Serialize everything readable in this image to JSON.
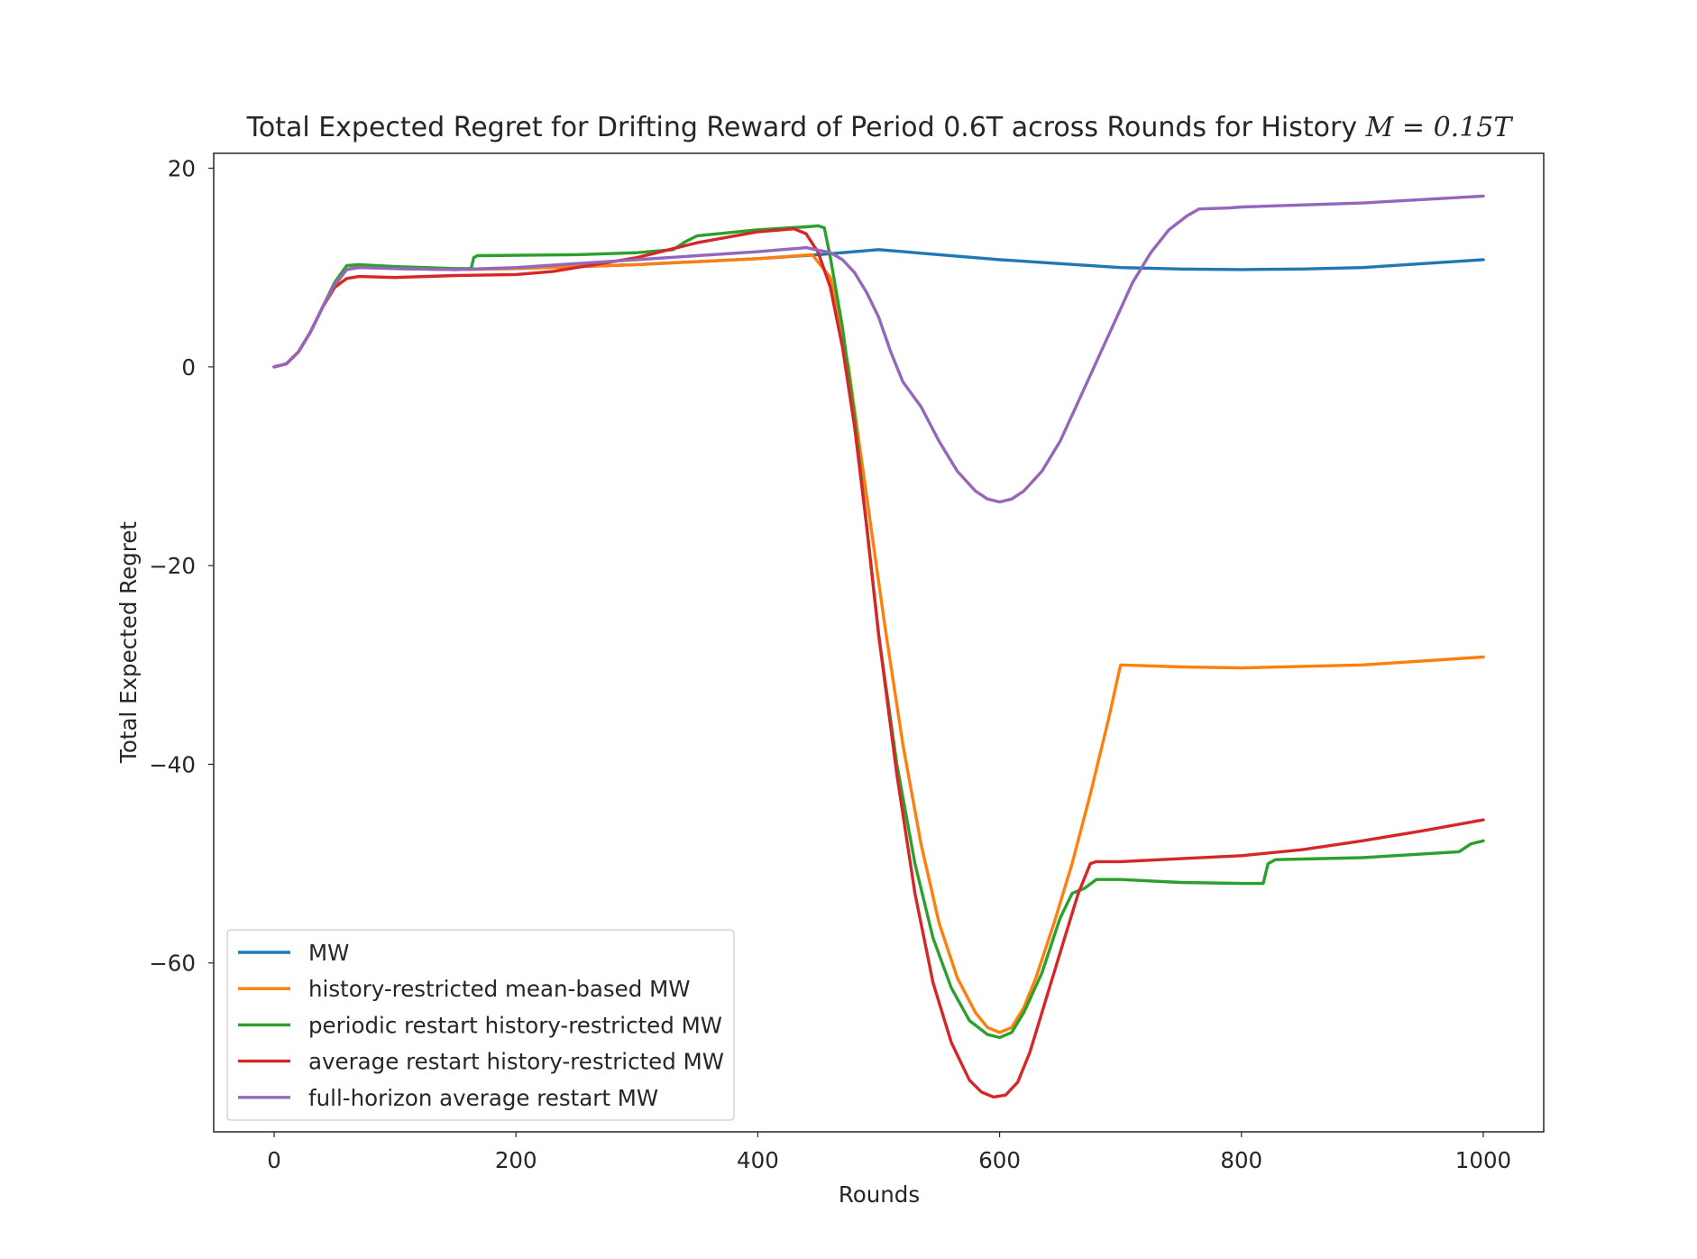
{
  "chart_data": {
    "type": "line",
    "title": "Total Expected Regret for Drifting Reward of Period 0.6T across Rounds for History",
    "title_math": "M = 0.15T",
    "xlabel": "Rounds",
    "ylabel": "Total Expected Regret",
    "xlim": [
      -50,
      1050
    ],
    "ylim": [
      -77,
      21.5
    ],
    "xticks": [
      0,
      200,
      400,
      600,
      800,
      1000
    ],
    "xtick_labels": [
      "0",
      "200",
      "400",
      "600",
      "800",
      "1000"
    ],
    "yticks": [
      20,
      0,
      -20,
      -40,
      -60
    ],
    "ytick_labels": [
      "20",
      "0",
      "−20",
      "−40",
      "−60"
    ],
    "grid": false,
    "legend_position": "lower-left",
    "series": [
      {
        "name": "MW",
        "color": "#1f77b4",
        "points": [
          [
            0,
            0
          ],
          [
            10,
            0.3
          ],
          [
            20,
            1.5
          ],
          [
            30,
            3.5
          ],
          [
            40,
            6
          ],
          [
            50,
            8.2
          ],
          [
            60,
            9.8
          ],
          [
            70,
            10.1
          ],
          [
            100,
            9.9
          ],
          [
            150,
            9.8
          ],
          [
            200,
            9.9
          ],
          [
            300,
            10.3
          ],
          [
            400,
            10.9
          ],
          [
            450,
            11.3
          ],
          [
            500,
            11.8
          ],
          [
            550,
            11.3
          ],
          [
            600,
            10.8
          ],
          [
            650,
            10.4
          ],
          [
            700,
            10.0
          ],
          [
            750,
            9.85
          ],
          [
            800,
            9.8
          ],
          [
            850,
            9.85
          ],
          [
            900,
            10.0
          ],
          [
            950,
            10.4
          ],
          [
            1000,
            10.8
          ]
        ]
      },
      {
        "name": "history-restricted mean-based MW",
        "color": "#ff7f0e",
        "points": [
          [
            0,
            0
          ],
          [
            10,
            0.3
          ],
          [
            20,
            1.5
          ],
          [
            30,
            3.5
          ],
          [
            40,
            6
          ],
          [
            50,
            8.2
          ],
          [
            60,
            9.8
          ],
          [
            70,
            10.1
          ],
          [
            100,
            9.9
          ],
          [
            150,
            9.8
          ],
          [
            200,
            9.9
          ],
          [
            300,
            10.3
          ],
          [
            400,
            10.9
          ],
          [
            445,
            11.3
          ],
          [
            460,
            9
          ],
          [
            475,
            0
          ],
          [
            490,
            -13
          ],
          [
            505,
            -26
          ],
          [
            520,
            -38
          ],
          [
            535,
            -48
          ],
          [
            550,
            -56
          ],
          [
            565,
            -61.5
          ],
          [
            580,
            -65
          ],
          [
            590,
            -66.5
          ],
          [
            600,
            -67
          ],
          [
            610,
            -66.5
          ],
          [
            620,
            -64.5
          ],
          [
            630,
            -61.5
          ],
          [
            645,
            -56
          ],
          [
            660,
            -50
          ],
          [
            675,
            -43
          ],
          [
            690,
            -35.5
          ],
          [
            700,
            -30
          ],
          [
            750,
            -30.2
          ],
          [
            800,
            -30.3
          ],
          [
            900,
            -30
          ],
          [
            1000,
            -29.2
          ]
        ]
      },
      {
        "name": "periodic restart history-restricted MW",
        "color": "#2ca02c",
        "points": [
          [
            0,
            0
          ],
          [
            10,
            0.3
          ],
          [
            20,
            1.5
          ],
          [
            30,
            3.5
          ],
          [
            40,
            6
          ],
          [
            50,
            8.5
          ],
          [
            60,
            10.2
          ],
          [
            70,
            10.3
          ],
          [
            100,
            10.1
          ],
          [
            150,
            9.9
          ],
          [
            163,
            9.9
          ],
          [
            165,
            11
          ],
          [
            168,
            11.2
          ],
          [
            250,
            11.3
          ],
          [
            300,
            11.5
          ],
          [
            330,
            11.8
          ],
          [
            340,
            12.6
          ],
          [
            350,
            13.2
          ],
          [
            400,
            13.8
          ],
          [
            440,
            14.1
          ],
          [
            450,
            14.2
          ],
          [
            455,
            14
          ],
          [
            460,
            11
          ],
          [
            470,
            4
          ],
          [
            480,
            -5
          ],
          [
            490,
            -16
          ],
          [
            500,
            -27
          ],
          [
            515,
            -40
          ],
          [
            530,
            -50
          ],
          [
            545,
            -57.5
          ],
          [
            560,
            -62.5
          ],
          [
            575,
            -65.8
          ],
          [
            590,
            -67.2
          ],
          [
            600,
            -67.5
          ],
          [
            610,
            -67
          ],
          [
            620,
            -65
          ],
          [
            635,
            -61
          ],
          [
            650,
            -55.5
          ],
          [
            660,
            -53
          ],
          [
            670,
            -52.5
          ],
          [
            680,
            -51.6
          ],
          [
            700,
            -51.6
          ],
          [
            750,
            -51.9
          ],
          [
            800,
            -52
          ],
          [
            818,
            -52
          ],
          [
            822,
            -50
          ],
          [
            828,
            -49.6
          ],
          [
            900,
            -49.4
          ],
          [
            980,
            -48.8
          ],
          [
            990,
            -48
          ],
          [
            1000,
            -47.7
          ]
        ]
      },
      {
        "name": "average restart history-restricted MW",
        "color": "#d62728",
        "points": [
          [
            0,
            0
          ],
          [
            10,
            0.3
          ],
          [
            20,
            1.5
          ],
          [
            30,
            3.5
          ],
          [
            40,
            6
          ],
          [
            50,
            8
          ],
          [
            60,
            8.9
          ],
          [
            70,
            9.1
          ],
          [
            100,
            9.0
          ],
          [
            150,
            9.2
          ],
          [
            200,
            9.3
          ],
          [
            230,
            9.6
          ],
          [
            250,
            10
          ],
          [
            300,
            11
          ],
          [
            350,
            12.5
          ],
          [
            400,
            13.6
          ],
          [
            430,
            13.9
          ],
          [
            440,
            13.4
          ],
          [
            450,
            11.5
          ],
          [
            460,
            8
          ],
          [
            470,
            2
          ],
          [
            480,
            -6
          ],
          [
            490,
            -16
          ],
          [
            500,
            -27
          ],
          [
            515,
            -41
          ],
          [
            530,
            -53
          ],
          [
            545,
            -62
          ],
          [
            560,
            -68
          ],
          [
            575,
            -71.8
          ],
          [
            585,
            -73
          ],
          [
            595,
            -73.5
          ],
          [
            605,
            -73.3
          ],
          [
            615,
            -72
          ],
          [
            625,
            -69
          ],
          [
            640,
            -63
          ],
          [
            655,
            -57
          ],
          [
            665,
            -53
          ],
          [
            675,
            -50
          ],
          [
            680,
            -49.8
          ],
          [
            700,
            -49.8
          ],
          [
            750,
            -49.5
          ],
          [
            800,
            -49.2
          ],
          [
            850,
            -48.6
          ],
          [
            900,
            -47.7
          ],
          [
            950,
            -46.7
          ],
          [
            1000,
            -45.6
          ]
        ]
      },
      {
        "name": "full-horizon average restart MW",
        "color": "#9467bd",
        "points": [
          [
            0,
            0
          ],
          [
            10,
            0.3
          ],
          [
            20,
            1.5
          ],
          [
            30,
            3.5
          ],
          [
            40,
            6
          ],
          [
            50,
            8.3
          ],
          [
            60,
            9.8
          ],
          [
            70,
            10
          ],
          [
            100,
            9.9
          ],
          [
            150,
            9.8
          ],
          [
            200,
            10
          ],
          [
            300,
            10.8
          ],
          [
            400,
            11.6
          ],
          [
            440,
            12
          ],
          [
            460,
            11.5
          ],
          [
            470,
            10.8
          ],
          [
            480,
            9.5
          ],
          [
            490,
            7.5
          ],
          [
            500,
            5
          ],
          [
            510,
            1.5
          ],
          [
            520,
            -1.5
          ],
          [
            535,
            -4
          ],
          [
            550,
            -7.5
          ],
          [
            565,
            -10.5
          ],
          [
            580,
            -12.5
          ],
          [
            590,
            -13.3
          ],
          [
            600,
            -13.6
          ],
          [
            610,
            -13.3
          ],
          [
            620,
            -12.5
          ],
          [
            635,
            -10.5
          ],
          [
            650,
            -7.5
          ],
          [
            665,
            -3.5
          ],
          [
            680,
            0.5
          ],
          [
            695,
            4.5
          ],
          [
            710,
            8.5
          ],
          [
            725,
            11.5
          ],
          [
            740,
            13.8
          ],
          [
            755,
            15.2
          ],
          [
            765,
            15.9
          ],
          [
            790,
            16.0
          ],
          [
            800,
            16.1
          ],
          [
            900,
            16.5
          ],
          [
            1000,
            17.2
          ]
        ]
      }
    ]
  }
}
